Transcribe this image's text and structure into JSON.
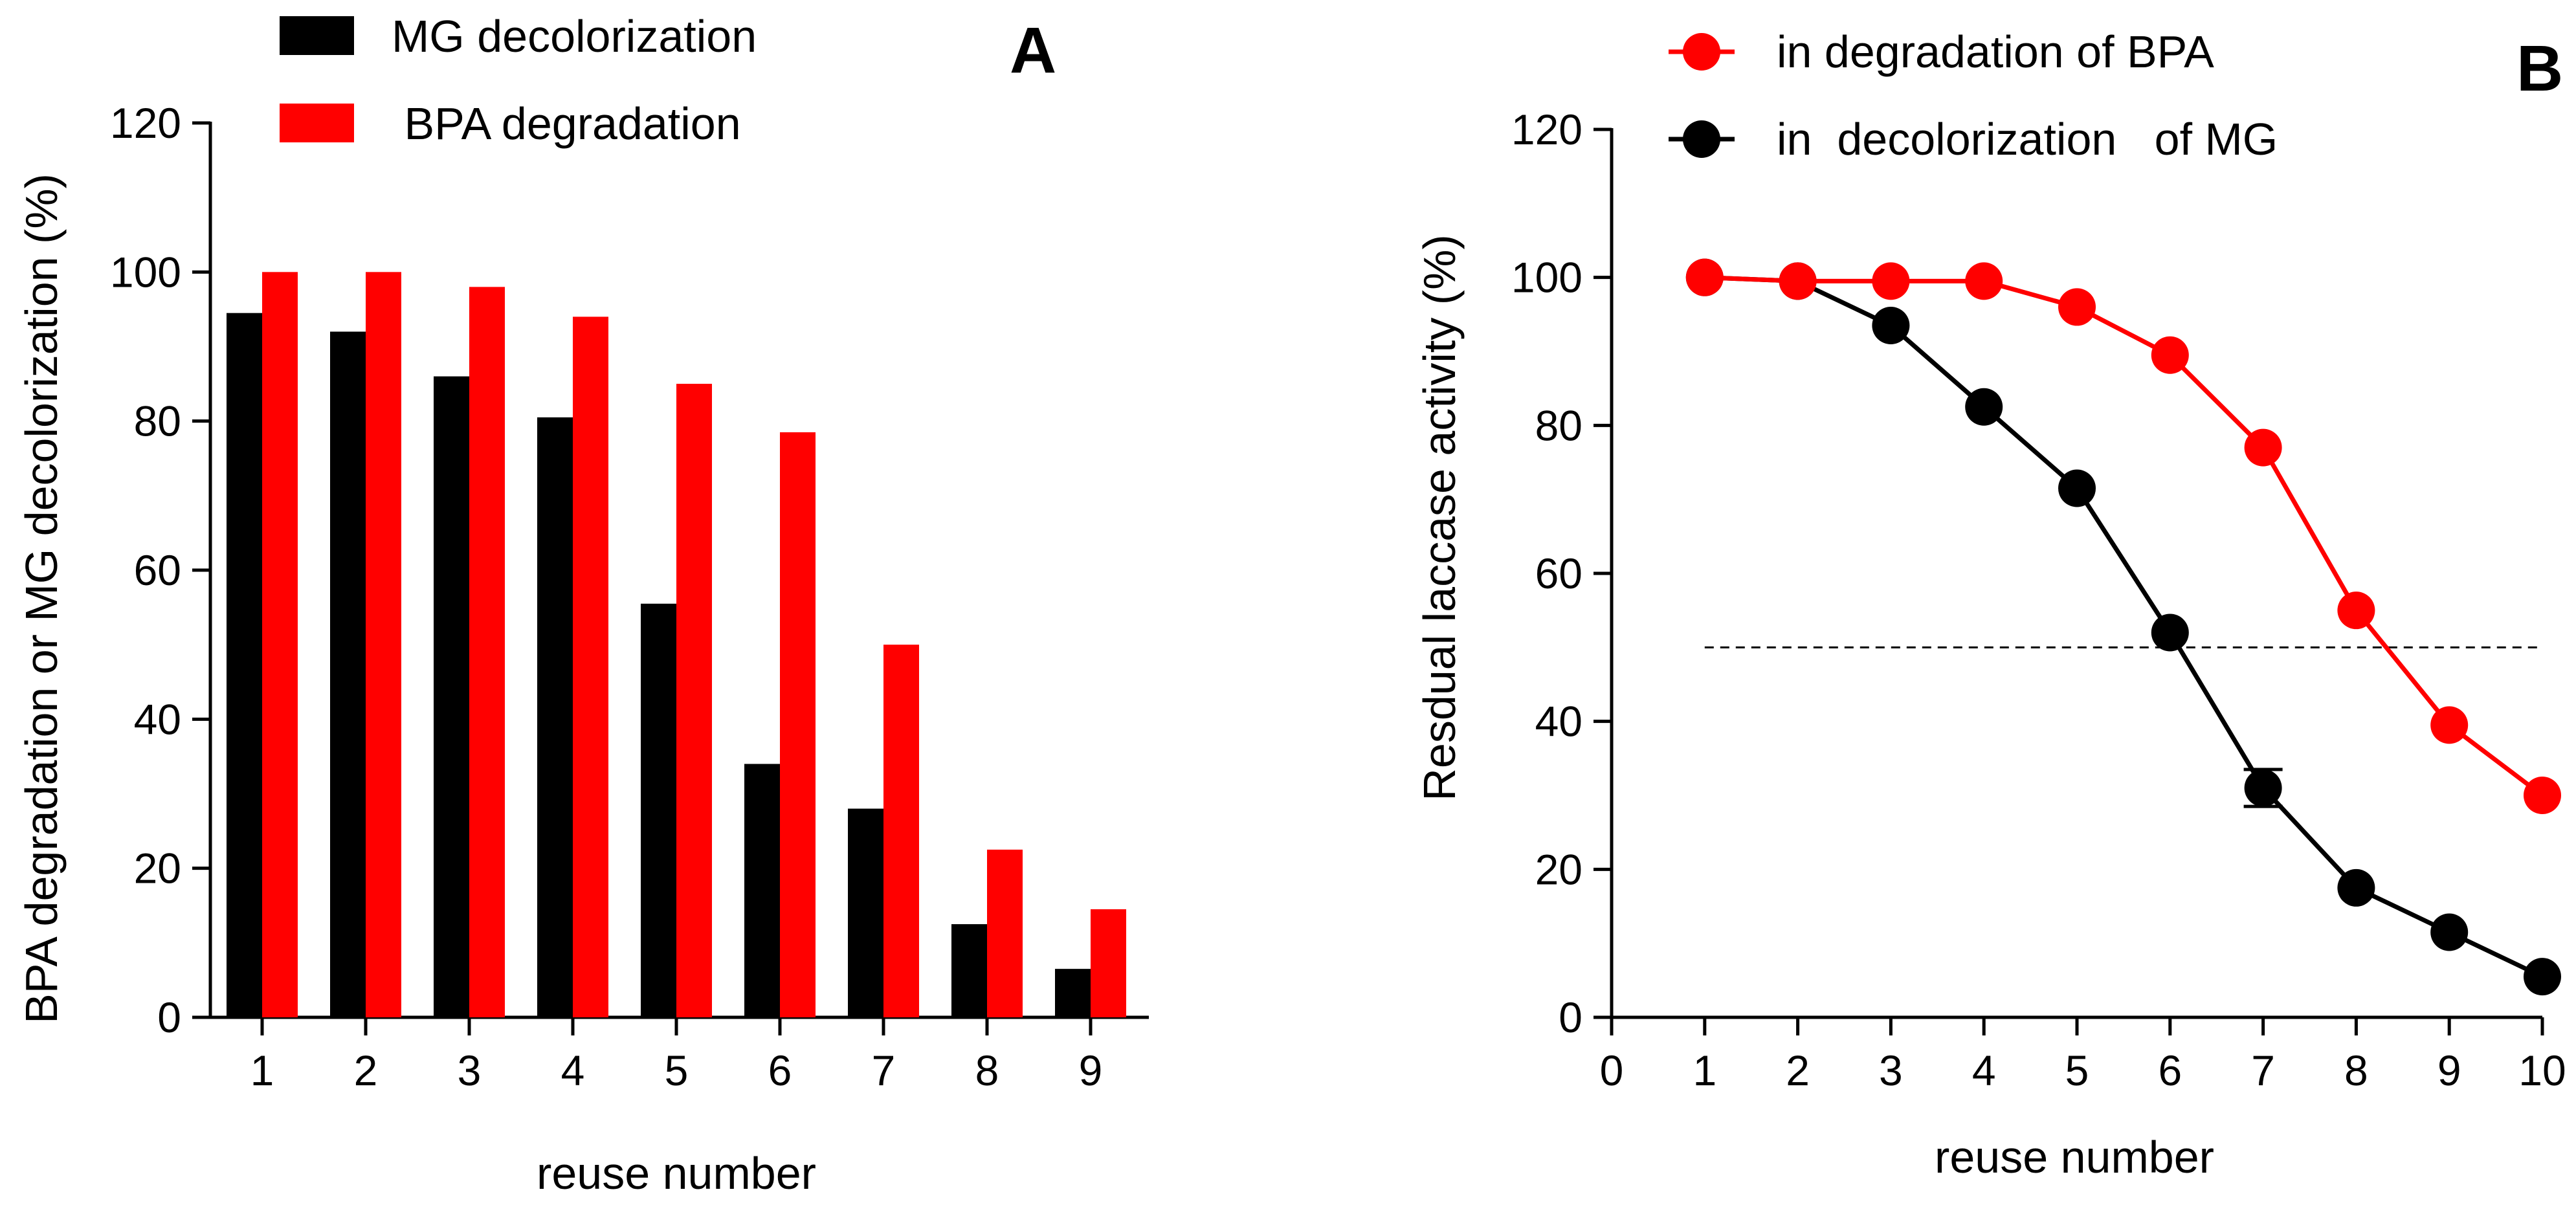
{
  "chart_data": [
    {
      "panel": "A",
      "type": "bar",
      "xlabel": "reuse number",
      "ylabel": "BPA degradation or MG decolorization (%)",
      "categories": [
        "1",
        "2",
        "3",
        "4",
        "5",
        "6",
        "7",
        "8",
        "9"
      ],
      "ylim": [
        0,
        120
      ],
      "yticks": [
        0,
        20,
        40,
        60,
        80,
        100,
        120
      ],
      "grid": false,
      "legend_position": "top-left",
      "series": [
        {
          "name": "MG decolorization",
          "color": "#000000",
          "values": [
            94.5,
            92,
            86,
            80.5,
            55.5,
            34,
            28,
            12.5,
            6.5
          ]
        },
        {
          "name": " BPA degradation",
          "color": "#ff0000",
          "values": [
            100,
            100,
            98,
            94,
            85,
            78.5,
            50,
            22.5,
            14.5
          ]
        }
      ]
    },
    {
      "panel": "B",
      "type": "line",
      "xlabel": "reuse number",
      "ylabel": "Resdual laccase activity (%)",
      "xlim": [
        0,
        10
      ],
      "ylim": [
        0,
        120
      ],
      "xticks": [
        0,
        1,
        2,
        3,
        4,
        5,
        6,
        7,
        8,
        9,
        10
      ],
      "yticks": [
        0,
        20,
        40,
        60,
        80,
        100,
        120
      ],
      "grid": false,
      "legend_position": "top-left",
      "reference_line": {
        "y": 50,
        "x_from": 1,
        "x_to": 10,
        "style": "dashed"
      },
      "series": [
        {
          "name": "in degradation of BPA",
          "color": "#ff0000",
          "x": [
            1,
            2,
            3,
            4,
            5,
            6,
            7,
            8,
            9,
            10
          ],
          "y": [
            100,
            99.5,
            99.5,
            99.5,
            96,
            89.5,
            77,
            55,
            39.5,
            30
          ]
        },
        {
          "name": "in  decolorization   of MG",
          "color": "#000000",
          "x": [
            1,
            2,
            3,
            4,
            5,
            6,
            7,
            8,
            9,
            10
          ],
          "y": [
            100,
            99.5,
            93.5,
            82.5,
            71.5,
            52,
            31,
            17.5,
            11.5,
            5.5
          ],
          "error_bar": {
            "x": 7,
            "y": 31,
            "err": 2.5
          }
        }
      ]
    }
  ]
}
